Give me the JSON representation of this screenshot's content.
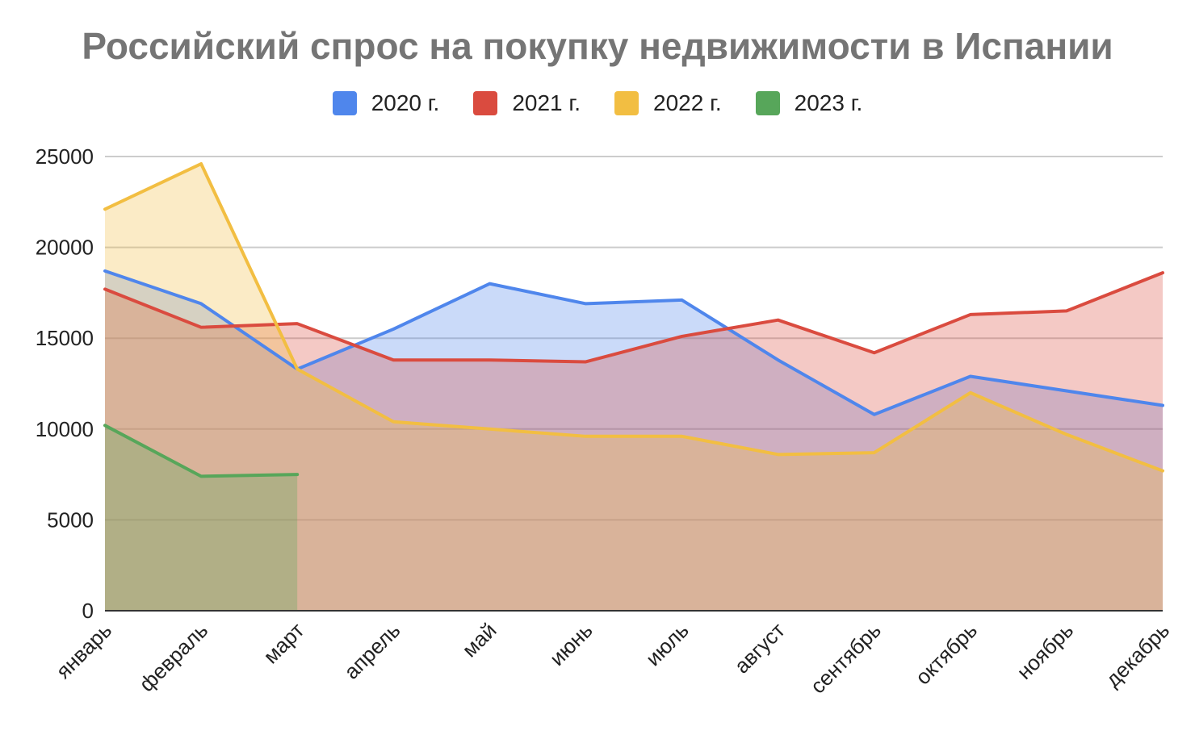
{
  "chart_data": {
    "type": "area",
    "title": "Российский спрос на покупку недвижимости в Испании",
    "xlabel": "",
    "ylabel": "",
    "categories": [
      "январь",
      "февраль",
      "март",
      "апрель",
      "май",
      "июнь",
      "июль",
      "август",
      "сентябрь",
      "октябрь",
      "ноябрь",
      "декабрь"
    ],
    "ylim": [
      0,
      25000
    ],
    "yticks": [
      0,
      5000,
      10000,
      15000,
      20000,
      25000
    ],
    "grid": true,
    "legend_position": "top",
    "series": [
      {
        "name": "2020 г.",
        "color": "#4f86ec",
        "values": [
          18700,
          16900,
          13300,
          15500,
          18000,
          16900,
          17100,
          13800,
          10800,
          12900,
          12100,
          11300
        ]
      },
      {
        "name": "2021 г.",
        "color": "#da4b3f",
        "values": [
          17700,
          15600,
          15800,
          13800,
          13800,
          13700,
          15100,
          16000,
          14200,
          16300,
          16500,
          18600
        ]
      },
      {
        "name": "2022 г.",
        "color": "#f2be42",
        "values": [
          22100,
          24600,
          13300,
          10400,
          10000,
          9600,
          9600,
          8600,
          8700,
          12000,
          9700,
          7700
        ]
      },
      {
        "name": "2023 г.",
        "color": "#57a65a",
        "values": [
          10200,
          7400,
          7500,
          null,
          null,
          null,
          null,
          null,
          null,
          null,
          null,
          null
        ]
      }
    ]
  }
}
